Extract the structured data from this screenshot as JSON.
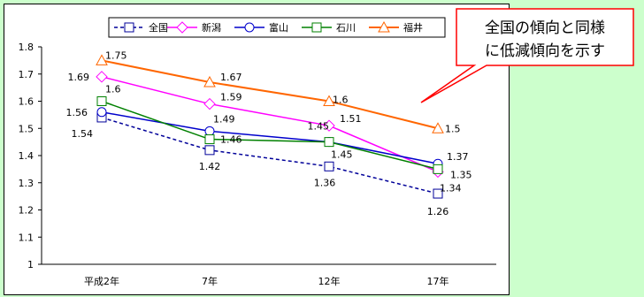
{
  "callout": {
    "text_line1": "全国の傾向と同様",
    "text_line2": "に低減傾向を示す",
    "border_color": "#ff0000"
  },
  "chart_data": {
    "type": "line",
    "categories": [
      "平成2年",
      "7年",
      "12年",
      "17年"
    ],
    "ylim": [
      1,
      1.8
    ],
    "yticks": [
      "1",
      "1.1",
      "1.2",
      "1.3",
      "1.4",
      "1.5",
      "1.6",
      "1.7",
      "1.8"
    ],
    "grid": false,
    "legend": "top-right",
    "series": [
      {
        "name": "全国",
        "values": [
          1.54,
          1.42,
          1.36,
          1.26
        ],
        "labels": [
          "1.54",
          "1.42",
          "1.36",
          "1.26"
        ],
        "color": "#000099",
        "dash": true,
        "marker": "square"
      },
      {
        "name": "新潟",
        "values": [
          1.69,
          1.59,
          1.51,
          1.34
        ],
        "labels": [
          "1.69",
          "1.59",
          "1.51",
          "1.34"
        ],
        "color": "#ff00ff",
        "dash": false,
        "marker": "diamond"
      },
      {
        "name": "富山",
        "values": [
          1.56,
          1.49,
          1.45,
          1.37
        ],
        "labels": [
          "1.56",
          "1.49",
          "1.45",
          "1.37"
        ],
        "color": "#0000cc",
        "dash": false,
        "marker": "circle"
      },
      {
        "name": "石川",
        "values": [
          1.6,
          1.46,
          1.45,
          1.35
        ],
        "labels": [
          "1.6",
          "1.46",
          "1.45",
          "1.35"
        ],
        "color": "#008000",
        "dash": false,
        "marker": "square"
      },
      {
        "name": "福井",
        "values": [
          1.75,
          1.67,
          1.6,
          1.5
        ],
        "labels": [
          "1.75",
          "1.67",
          "1.6",
          "1.5"
        ],
        "color": "#ff6600",
        "dash": false,
        "marker": "triangle"
      }
    ]
  }
}
